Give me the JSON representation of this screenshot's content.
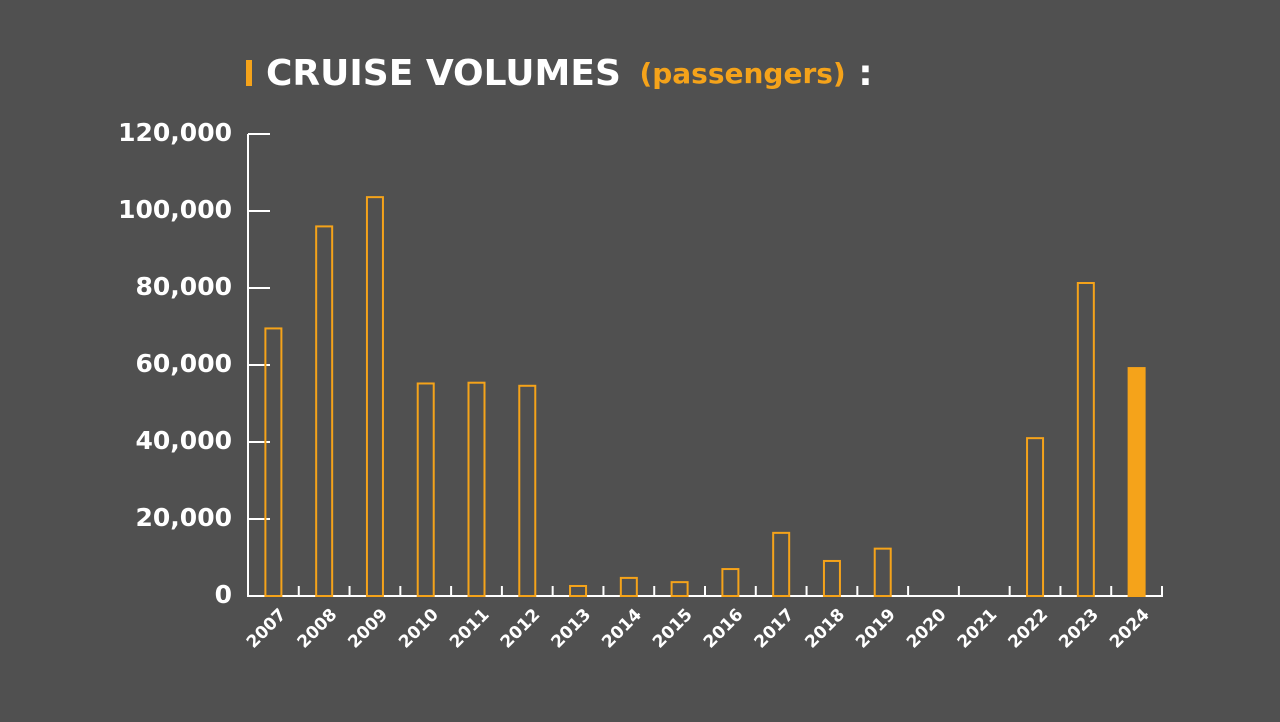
{
  "chart_data": {
    "type": "bar",
    "title": "CRUISE VOLUMES",
    "unit": "(passengers)",
    "title_suffix": ":",
    "categories": [
      "2007",
      "2008",
      "2009",
      "2010",
      "2011",
      "2012",
      "2013",
      "2014",
      "2015",
      "2016",
      "2017",
      "2018",
      "2019",
      "2020",
      "2021",
      "2022",
      "2023",
      "2024"
    ],
    "values": [
      69500,
      96000,
      103600,
      55200,
      55400,
      54600,
      2600,
      4700,
      3600,
      7000,
      16400,
      9100,
      12300,
      0,
      0,
      41000,
      81300,
      59200
    ],
    "filled": [
      false,
      false,
      false,
      false,
      false,
      false,
      false,
      false,
      false,
      false,
      false,
      false,
      false,
      false,
      false,
      false,
      false,
      true
    ],
    "color": "#f5a31a",
    "ylim": [
      0,
      120000
    ],
    "yticks": [
      0,
      {
        "value": 20000,
        "label": "20,000"
      },
      {
        "value": 40000,
        "label": "40,000"
      },
      {
        "value": 60000,
        "label": "60,000"
      },
      {
        "value": 80000,
        "label": "80,000"
      },
      {
        "value": 100000,
        "label": "100,000"
      },
      {
        "value": 120000,
        "label": "120,000"
      }
    ]
  }
}
